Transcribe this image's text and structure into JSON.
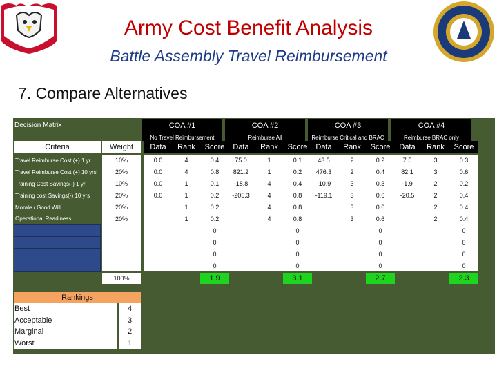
{
  "header": {
    "title": "Army Cost Benefit Analysis",
    "subtitle": "Battle Assembly Travel Reimbursement",
    "section": "7. Compare Alternatives"
  },
  "matrix": {
    "title": "Decision Matrix",
    "criteria_header": "Criteria",
    "weight_header": "Weight",
    "coas": [
      {
        "name": "COA #1",
        "subtitle": "No Travel Reimbursement"
      },
      {
        "name": "COA #2",
        "subtitle": "Reimburse All"
      },
      {
        "name": "COA #3",
        "subtitle": "Reimburse Critical and BRAC"
      },
      {
        "name": "COA #4",
        "subtitle": "Reimburse BRAC only"
      }
    ],
    "subheaders": {
      "data": "Data",
      "rank": "Rank",
      "score": "Score"
    },
    "rows": [
      {
        "criteria": "Travel Reimburse Cost (+) 1 yr",
        "weight": "10%",
        "coa": [
          [
            "0.0",
            "4",
            "0.4"
          ],
          [
            "75.0",
            "1",
            "0.1"
          ],
          [
            "43.5",
            "2",
            "0.2"
          ],
          [
            "7.5",
            "3",
            "0.3"
          ]
        ]
      },
      {
        "criteria": "Travel Reimburse Cost (+) 10 yrs",
        "weight": "20%",
        "coa": [
          [
            "0.0",
            "4",
            "0.8"
          ],
          [
            "821.2",
            "1",
            "0.2"
          ],
          [
            "476.3",
            "2",
            "0.4"
          ],
          [
            "82.1",
            "3",
            "0.6"
          ]
        ]
      },
      {
        "criteria": "Training Cost Savings(-) 1 yr",
        "weight": "10%",
        "coa": [
          [
            "0.0",
            "1",
            "0.1"
          ],
          [
            "-18.8",
            "4",
            "0.4"
          ],
          [
            "-10.9",
            "3",
            "0.3"
          ],
          [
            "-1.9",
            "2",
            "0.2"
          ]
        ]
      },
      {
        "criteria": "Training cost Savings(-) 10 yrs",
        "weight": "20%",
        "coa": [
          [
            "0.0",
            "1",
            "0.2"
          ],
          [
            "-205.3",
            "4",
            "0.8"
          ],
          [
            "-119.1",
            "3",
            "0.6"
          ],
          [
            "-20.5",
            "2",
            "0.4"
          ]
        ]
      },
      {
        "criteria": "Morale / Good Will",
        "weight": "20%",
        "coa": [
          [
            "",
            "1",
            "0.2"
          ],
          [
            "",
            "4",
            "0.8"
          ],
          [
            "",
            "3",
            "0.6"
          ],
          [
            "",
            "2",
            "0.4"
          ]
        ]
      },
      {
        "criteria": "Operational Readiness",
        "weight": "20%",
        "coa": [
          [
            "",
            "1",
            "0.2"
          ],
          [
            "",
            "4",
            "0.8"
          ],
          [
            "",
            "3",
            "0.6"
          ],
          [
            "",
            "2",
            "0.4"
          ]
        ]
      },
      {
        "criteria": "",
        "weight": "",
        "coa": [
          [
            "",
            "",
            "0"
          ],
          [
            "",
            "",
            "0"
          ],
          [
            "",
            "",
            "0"
          ],
          [
            "",
            "",
            "0"
          ]
        ]
      },
      {
        "criteria": "",
        "weight": "",
        "coa": [
          [
            "",
            "",
            "0"
          ],
          [
            "",
            "",
            "0"
          ],
          [
            "",
            "",
            "0"
          ],
          [
            "",
            "",
            "0"
          ]
        ]
      },
      {
        "criteria": "",
        "weight": "",
        "coa": [
          [
            "",
            "",
            "0"
          ],
          [
            "",
            "",
            "0"
          ],
          [
            "",
            "",
            "0"
          ],
          [
            "",
            "",
            "0"
          ]
        ]
      },
      {
        "criteria": "",
        "weight": "",
        "coa": [
          [
            "",
            "",
            "0"
          ],
          [
            "",
            "",
            "0"
          ],
          [
            "",
            "",
            "0"
          ],
          [
            "",
            "",
            "0"
          ]
        ]
      }
    ],
    "total_weight": "100%",
    "totals": [
      "1.9",
      "3.1",
      "2.7",
      "2.3"
    ]
  },
  "rankings": {
    "title": "Rankings",
    "items": [
      {
        "label": "Best",
        "value": "4"
      },
      {
        "label": "Acceptable",
        "value": "3"
      },
      {
        "label": "Marginal",
        "value": "2"
      },
      {
        "label": "Worst",
        "value": "1"
      }
    ]
  },
  "colors": {
    "title": "#c00000",
    "subtitle": "#1f3c88",
    "panel": "#475b32",
    "criteria_box": "#2f4a8a",
    "rankings_box": "#f4a460",
    "total_highlight": "#1fd41f"
  },
  "icons": {
    "left_logo": "eagle-emblem-icon",
    "right_logo": "army-seal-icon"
  }
}
